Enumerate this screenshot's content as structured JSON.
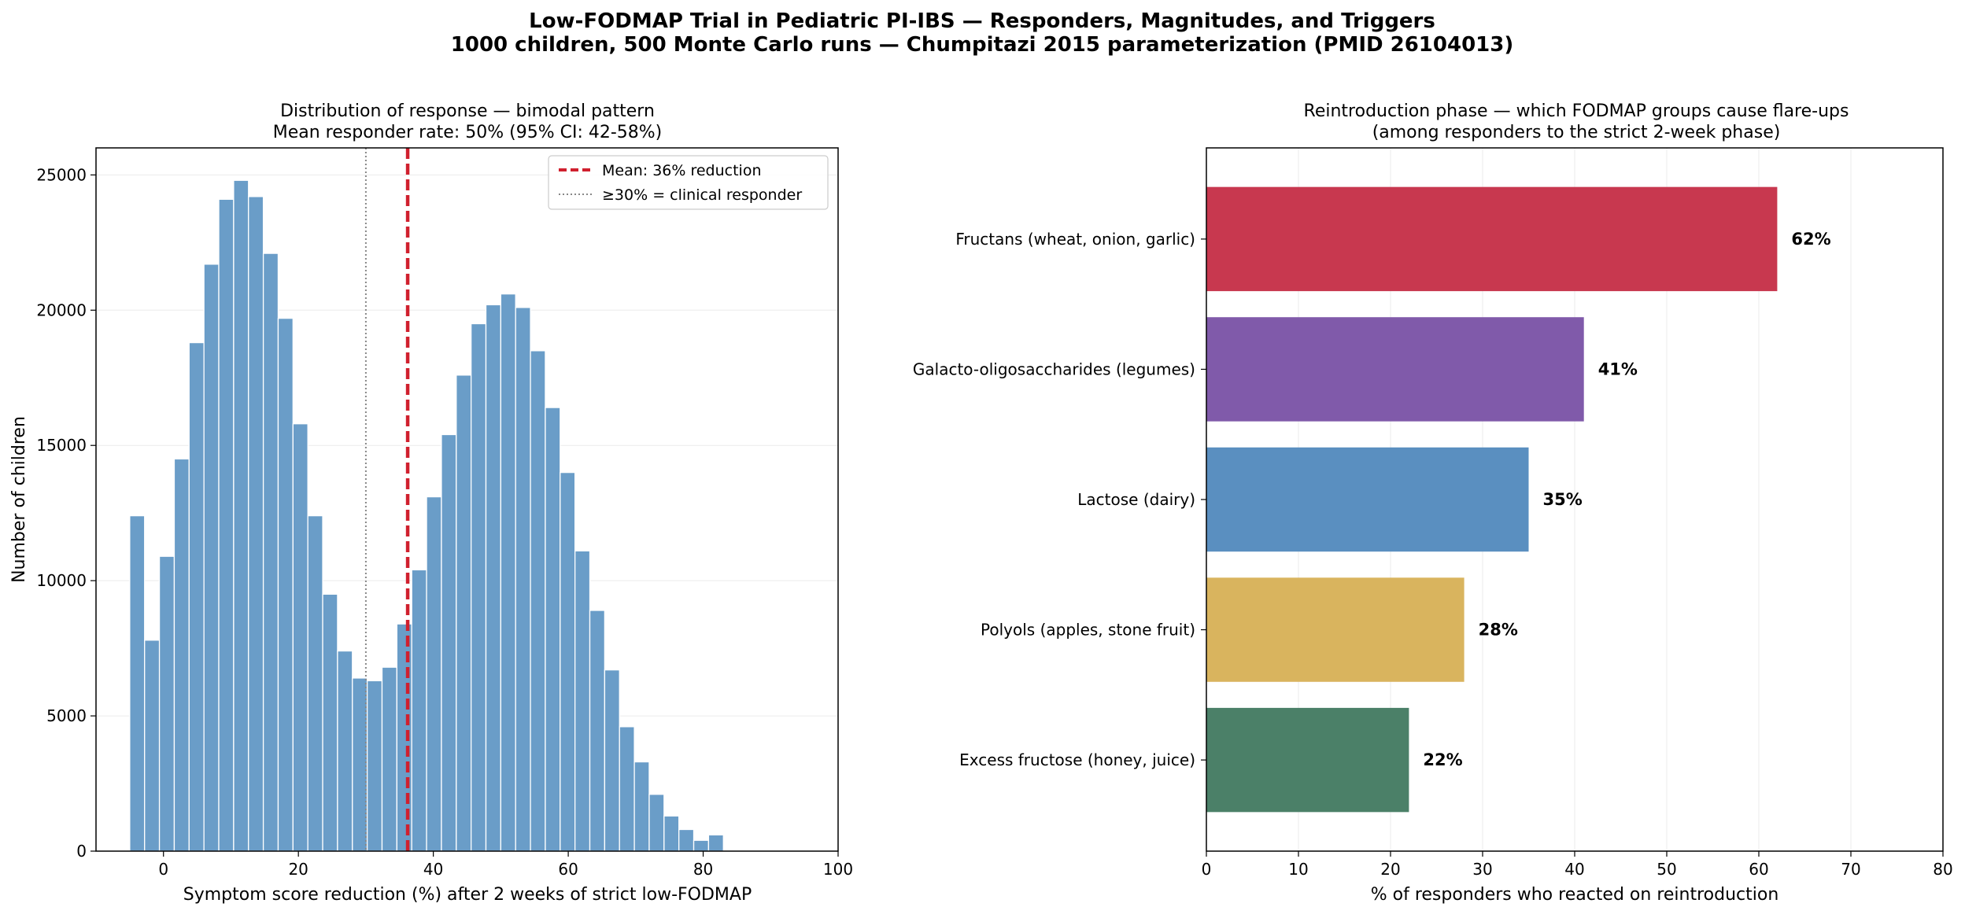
{
  "figure": {
    "title_line1": "Low-FODMAP Trial in Pediatric PI-IBS — Responders, Magnitudes, and Triggers",
    "title_line2": "1000 children, 500 Monte Carlo runs — Chumpitazi 2015 parameterization (PMID 26104013)"
  },
  "chart_data": [
    {
      "type": "bar",
      "subtype": "histogram",
      "title_line1": "Distribution of response — bimodal pattern",
      "title_line2": "Mean responder rate: 50%  (95% CI: 42-58%)",
      "xlabel": "Symptom score reduction (%) after 2 weeks of strict low-FODMAP",
      "ylabel": "Number of children",
      "xlim": [
        -10,
        100
      ],
      "ylim": [
        0,
        26000
      ],
      "xticks": [
        0,
        20,
        40,
        60,
        80,
        100
      ],
      "yticks": [
        0,
        5000,
        10000,
        15000,
        20000,
        25000
      ],
      "grid": "y",
      "bin_width": 2.2,
      "bin_start": -5,
      "counts": [
        12400,
        7800,
        10900,
        14500,
        18800,
        21700,
        24100,
        24800,
        24200,
        22100,
        19700,
        15800,
        12400,
        9500,
        7400,
        6400,
        6300,
        6800,
        8400,
        10400,
        13100,
        15400,
        17600,
        19500,
        20200,
        20600,
        20100,
        18500,
        16400,
        14000,
        11100,
        8900,
        6700,
        4600,
        3300,
        2100,
        1300,
        800,
        400,
        600
      ],
      "bar_color": "#6a9dc8",
      "mean_line": {
        "x": 36.2,
        "color": "#d0202e",
        "label": "Mean: 36% reduction"
      },
      "threshold_line": {
        "x": 30,
        "color": "#888888",
        "label": "≥30% = clinical responder"
      },
      "legend": "upper-right"
    },
    {
      "type": "bar",
      "orientation": "horizontal",
      "title_line1": "Reintroduction phase — which FODMAP groups cause flare-ups",
      "title_line2": "(among responders to the strict 2-week phase)",
      "xlabel": "% of responders who reacted on reintroduction",
      "xlim": [
        0,
        80
      ],
      "xticks": [
        0,
        10,
        20,
        30,
        40,
        50,
        60,
        70,
        80
      ],
      "grid": "x",
      "bars": [
        {
          "label": "Fructans (wheat, onion, garlic)",
          "value": 62,
          "value_label": "62%",
          "color": "#c8384f"
        },
        {
          "label": "Galacto-oligosaccharides (legumes)",
          "value": 41,
          "value_label": "41%",
          "color": "#805aaa"
        },
        {
          "label": "Lactose (dairy)",
          "value": 35,
          "value_label": "35%",
          "color": "#5a8fc0"
        },
        {
          "label": "Polyols (apples, stone fruit)",
          "value": 28,
          "value_label": "28%",
          "color": "#d9b45e"
        },
        {
          "label": "Excess fructose (honey, juice)",
          "value": 22,
          "value_label": "22%",
          "color": "#4b8068"
        }
      ]
    }
  ]
}
